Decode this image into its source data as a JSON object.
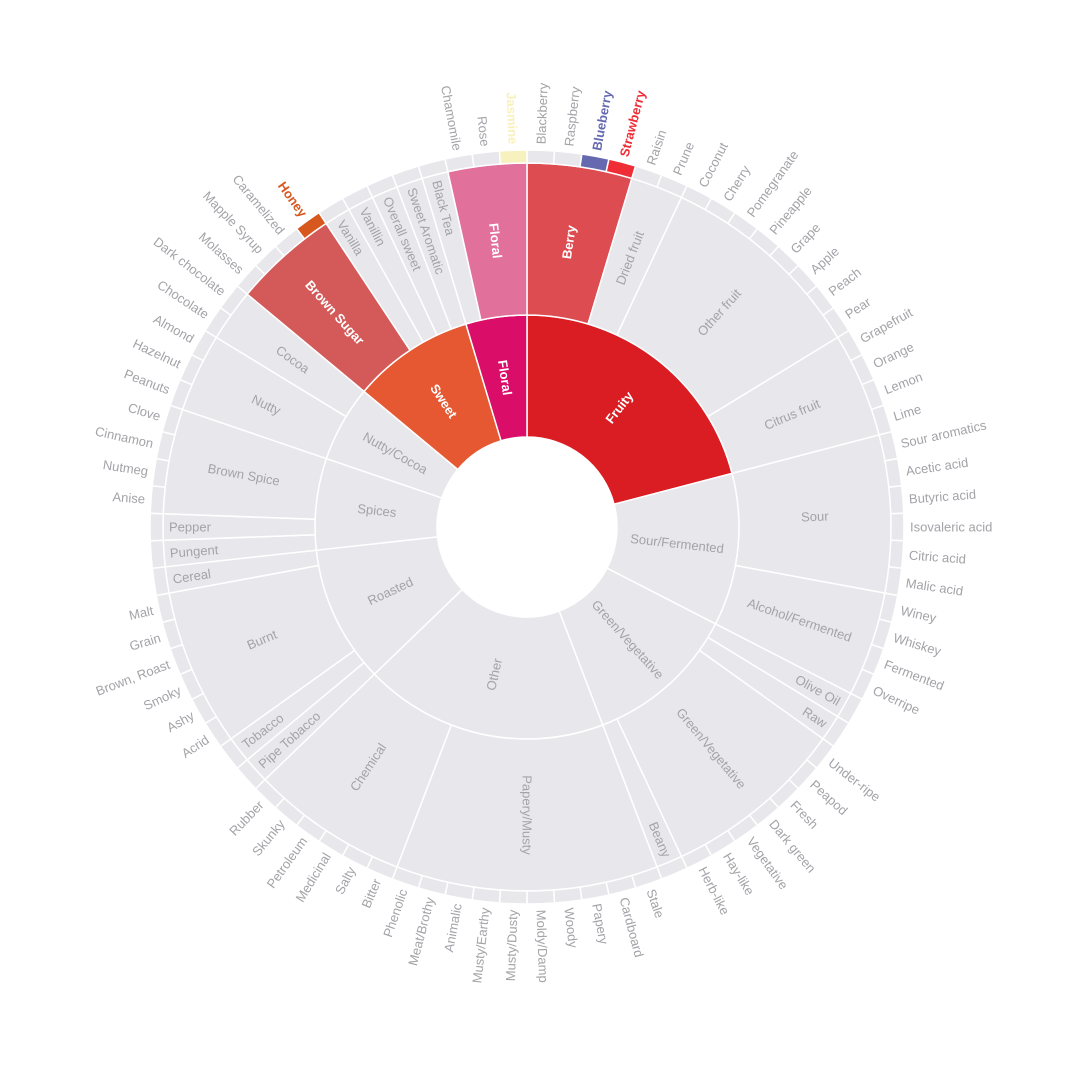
{
  "chart_data": {
    "type": "sunburst",
    "title": "",
    "colors": {
      "muted": "#e8e7ec",
      "muted_text": "#a3a3a8",
      "Fruity": "#da1d23",
      "Berry": "#dd4c51",
      "Strawberry": "#ef2d36",
      "Blueberry": "#6569b0",
      "Floral": "#da0d68",
      "Floral2": "#e1709b",
      "Jasmine": "#f7f1bd",
      "Sweet": "#e65832",
      "Brown Sugar": "#d45a59",
      "Honey": "#d7581e"
    },
    "root": {
      "name": "root",
      "children": [
        {
          "name": "Fruity",
          "color": "Fruity",
          "children": [
            {
              "name": "Berry",
              "color": "Berry",
              "children": [
                {
                  "name": "Blackberry",
                  "value": 1
                },
                {
                  "name": "Raspberry",
                  "value": 1
                },
                {
                  "name": "Blueberry",
                  "value": 1,
                  "color": "Blueberry"
                },
                {
                  "name": "Strawberry",
                  "value": 1,
                  "color": "Strawberry"
                }
              ]
            },
            {
              "name": "Dried fruit",
              "children": [
                {
                  "name": "Raisin",
                  "value": 1
                },
                {
                  "name": "Prune",
                  "value": 1
                }
              ]
            },
            {
              "name": "Other fruit",
              "children": [
                {
                  "name": "Coconut",
                  "value": 1
                },
                {
                  "name": "Cherry",
                  "value": 1
                },
                {
                  "name": "Pomegranate",
                  "value": 1
                },
                {
                  "name": "Pineapple",
                  "value": 1
                },
                {
                  "name": "Grape",
                  "value": 1
                },
                {
                  "name": "Apple",
                  "value": 1
                },
                {
                  "name": "Peach",
                  "value": 1
                },
                {
                  "name": "Pear",
                  "value": 1
                }
              ]
            },
            {
              "name": "Citrus fruit",
              "children": [
                {
                  "name": "Grapefruit",
                  "value": 1
                },
                {
                  "name": "Orange",
                  "value": 1
                },
                {
                  "name": "Lemon",
                  "value": 1
                },
                {
                  "name": "Lime",
                  "value": 1
                }
              ]
            }
          ]
        },
        {
          "name": "Sour/Fermented",
          "children": [
            {
              "name": "Sour",
              "children": [
                {
                  "name": "Sour aromatics",
                  "value": 1
                },
                {
                  "name": "Acetic acid",
                  "value": 1
                },
                {
                  "name": "Butyric acid",
                  "value": 1
                },
                {
                  "name": "Isovaleric acid",
                  "value": 1
                },
                {
                  "name": "Citric acid",
                  "value": 1
                },
                {
                  "name": "Malic acid",
                  "value": 1
                }
              ]
            },
            {
              "name": "Alcohol/Fermented",
              "children": [
                {
                  "name": "Winey",
                  "value": 1
                },
                {
                  "name": "Whiskey",
                  "value": 1
                },
                {
                  "name": "Fermented",
                  "value": 1
                },
                {
                  "name": "Overripe",
                  "value": 1
                }
              ]
            }
          ]
        },
        {
          "name": "Green/Vegetative",
          "children": [
            {
              "name": "Olive Oil",
              "value": 1
            },
            {
              "name": "Raw",
              "value": 1
            },
            {
              "name": "Green/Vegetative",
              "children": [
                {
                  "name": "Under-ripe",
                  "value": 1
                },
                {
                  "name": "Peapod",
                  "value": 1
                },
                {
                  "name": "Fresh",
                  "value": 1
                },
                {
                  "name": "Dark green",
                  "value": 1
                },
                {
                  "name": "Vegetative",
                  "value": 1
                },
                {
                  "name": "Hay-like",
                  "value": 1
                },
                {
                  "name": "Herb-like",
                  "value": 1
                }
              ]
            },
            {
              "name": "Beany",
              "value": 1
            }
          ]
        },
        {
          "name": "Other",
          "children": [
            {
              "name": "Papery/Musty",
              "children": [
                {
                  "name": "Stale",
                  "value": 1
                },
                {
                  "name": "Cardboard",
                  "value": 1
                },
                {
                  "name": "Papery",
                  "value": 1
                },
                {
                  "name": "Woody",
                  "value": 1
                },
                {
                  "name": "Moldy/Damp",
                  "value": 1
                },
                {
                  "name": "Musty/Dusty",
                  "value": 1
                },
                {
                  "name": "Musty/Earthy",
                  "value": 1
                },
                {
                  "name": "Animalic",
                  "value": 1
                },
                {
                  "name": "Meat/Brothy",
                  "value": 1
                },
                {
                  "name": "Phenolic",
                  "value": 1
                }
              ]
            },
            {
              "name": "Chemical",
              "children": [
                {
                  "name": "Bitter",
                  "value": 1
                },
                {
                  "name": "Salty",
                  "value": 1
                },
                {
                  "name": "Medicinal",
                  "value": 1
                },
                {
                  "name": "Petroleum",
                  "value": 1
                },
                {
                  "name": "Skunky",
                  "value": 1
                },
                {
                  "name": "Rubber",
                  "value": 1
                }
              ]
            }
          ]
        },
        {
          "name": "Roasted",
          "children": [
            {
              "name": "Pipe Tobacco",
              "value": 1
            },
            {
              "name": "Tobacco",
              "value": 1
            },
            {
              "name": "Burnt",
              "children": [
                {
                  "name": "Acrid",
                  "value": 1
                },
                {
                  "name": "Ashy",
                  "value": 1
                },
                {
                  "name": "Smoky",
                  "value": 1
                },
                {
                  "name": "Brown, Roast",
                  "value": 1
                },
                {
                  "name": "Grain",
                  "value": 1
                },
                {
                  "name": "Malt",
                  "value": 1
                }
              ]
            },
            {
              "name": "Cereal",
              "value": 1
            }
          ]
        },
        {
          "name": "Spices",
          "children": [
            {
              "name": "Pungent",
              "value": 1
            },
            {
              "name": "Pepper",
              "value": 1
            },
            {
              "name": "Brown Spice",
              "children": [
                {
                  "name": "Anise",
                  "value": 1
                },
                {
                  "name": "Nutmeg",
                  "value": 1
                },
                {
                  "name": "Cinnamon",
                  "value": 1
                },
                {
                  "name": "Clove",
                  "value": 1
                }
              ]
            }
          ]
        },
        {
          "name": "Nutty/Cocoa",
          "children": [
            {
              "name": "Nutty",
              "children": [
                {
                  "name": "Peanuts",
                  "value": 1
                },
                {
                  "name": "Hazelnut",
                  "value": 1
                },
                {
                  "name": "Almond",
                  "value": 1
                }
              ]
            },
            {
              "name": "Cocoa",
              "children": [
                {
                  "name": "Chocolate",
                  "value": 1
                },
                {
                  "name": "Dark chocolate",
                  "value": 1
                }
              ]
            }
          ]
        },
        {
          "name": "Sweet",
          "color": "Sweet",
          "children": [
            {
              "name": "Brown Sugar",
              "color": "Brown Sugar",
              "children": [
                {
                  "name": "Molasses",
                  "value": 1
                },
                {
                  "name": "Mapple Syrup",
                  "value": 1
                },
                {
                  "name": "Caramelized",
                  "value": 1
                },
                {
                  "name": "Honey",
                  "value": 1,
                  "color": "Honey"
                }
              ]
            },
            {
              "name": "Vanilla",
              "value": 1
            },
            {
              "name": "Vanillin",
              "value": 1
            },
            {
              "name": "Overall sweet",
              "value": 1
            },
            {
              "name": "Sweet Aromatic",
              "value": 1
            }
          ]
        },
        {
          "name": "Floral",
          "color": "Floral",
          "children": [
            {
              "name": "Black Tea",
              "value": 1
            },
            {
              "name": "Floral",
              "color": "Floral2",
              "children": [
                {
                  "name": "Chamomile",
                  "value": 1
                },
                {
                  "name": "Rose",
                  "value": 1
                },
                {
                  "name": "Jasmine",
                  "value": 1,
                  "color": "Jasmine"
                }
              ]
            }
          ]
        }
      ]
    }
  }
}
